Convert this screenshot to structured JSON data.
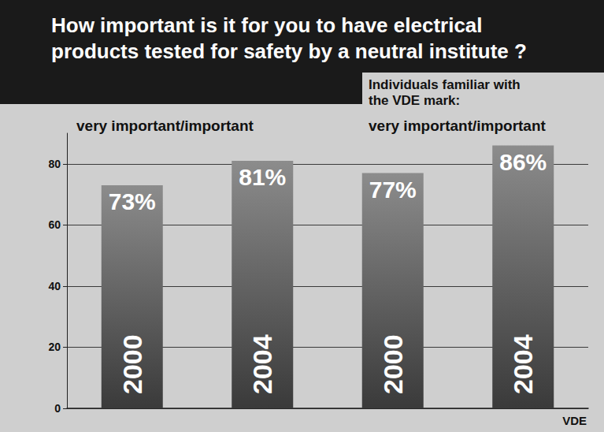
{
  "chart_data": {
    "type": "bar",
    "title": "How important is it for you to have electrical products tested for safety by a neutral institute ?",
    "annotations": [
      "very important/important",
      "Individuals familiar with the VDE mark:",
      "very important/important",
      "VDE"
    ],
    "categories": [
      "2000",
      "2004",
      "2000",
      "2004"
    ],
    "values": [
      73,
      81,
      77,
      86
    ],
    "value_labels": [
      "73%",
      "81%",
      "77%",
      "86%"
    ],
    "data_labels": true,
    "color": "#3a3a3a",
    "ylim": [
      0,
      90
    ],
    "yticks": [
      0,
      20,
      40,
      60,
      80
    ],
    "grid": true
  }
}
